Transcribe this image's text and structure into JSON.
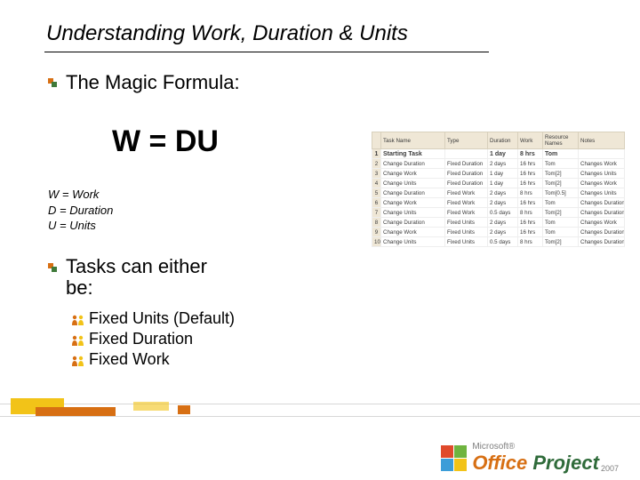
{
  "title": "Understanding Work, Duration & Units",
  "bullets": {
    "magic": "The Magic Formula:",
    "tasks": "Tasks can either\nbe:"
  },
  "formula": "W = DU",
  "legend": [
    "W = Work",
    "D = Duration",
    "U = Units"
  ],
  "sub_items": [
    "Fixed Units (Default)",
    "Fixed Duration",
    "Fixed Work"
  ],
  "colors": {
    "bullet_orange": "#d76f13",
    "bullet_green": "#3f7a3a",
    "person_orange": "#d76f13",
    "person_yellow": "#f2c318",
    "th_bg": "#efe7d6",
    "logo_r": "#e04a2b",
    "logo_g": "#6fb43f",
    "logo_b": "#3c9dd8",
    "logo_y": "#f2c318"
  },
  "table": {
    "headers": [
      "",
      "Task Name",
      "Type",
      "Duration",
      "Work",
      "Resource Names",
      "Notes"
    ],
    "rows": [
      {
        "bold": true,
        "cells": [
          "1",
          "Starting Task",
          "",
          "1 day",
          "8 hrs",
          "Tom",
          ""
        ]
      },
      {
        "bold": false,
        "cells": [
          "2",
          "Change Duration",
          "Fixed Duration",
          "2 days",
          "16 hrs",
          "Tom",
          "Changes Work"
        ]
      },
      {
        "bold": false,
        "cells": [
          "3",
          "Change Work",
          "Fixed Duration",
          "1 day",
          "16 hrs",
          "Tom[2]",
          "Changes Units"
        ]
      },
      {
        "bold": false,
        "cells": [
          "4",
          "Change Units",
          "Fixed Duration",
          "1 day",
          "16 hrs",
          "Tom[2]",
          "Changes Work"
        ]
      },
      {
        "bold": false,
        "cells": [
          "5",
          "Change Duration",
          "Fixed Work",
          "2 days",
          "8 hrs",
          "Tom[0.5]",
          "Changes Units"
        ]
      },
      {
        "bold": false,
        "cells": [
          "6",
          "Change Work",
          "Fixed Work",
          "2 days",
          "16 hrs",
          "Tom",
          "Changes Duration"
        ]
      },
      {
        "bold": false,
        "cells": [
          "7",
          "Change Units",
          "Fixed Work",
          "0.5 days",
          "8 hrs",
          "Tom[2]",
          "Changes Duration"
        ]
      },
      {
        "bold": false,
        "cells": [
          "8",
          "Change Duration",
          "Fixed Units",
          "2 days",
          "16 hrs",
          "Tom",
          "Changes Work"
        ]
      },
      {
        "bold": false,
        "cells": [
          "9",
          "Change Work",
          "Fixed Units",
          "2 days",
          "16 hrs",
          "Tom",
          "Changes Duration"
        ]
      },
      {
        "bold": false,
        "cells": [
          "10",
          "Change Units",
          "Fixed Units",
          "0.5 days",
          "8 hrs",
          "Tom[2]",
          "Changes Duration"
        ]
      }
    ]
  },
  "logo": {
    "vendor": "Microsoft®",
    "product_a": "Office ",
    "product_b": "Project",
    "year": "2007"
  }
}
